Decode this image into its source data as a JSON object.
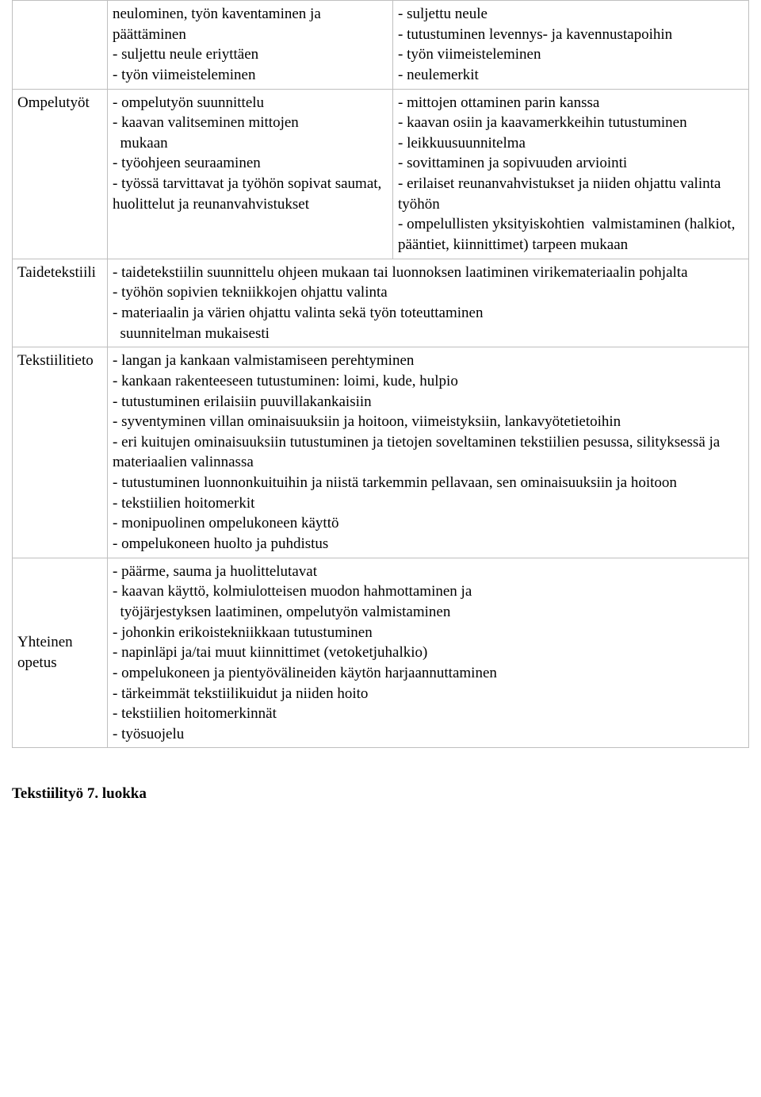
{
  "rows": {
    "r0": {
      "label": "",
      "col2": "neulominen, työn kaventaminen ja päättäminen\n- suljettu neule eriyttäen\n- työn viimeisteleminen",
      "col3": "- suljettu neule\n- tutustuminen levennys- ja kavennustapoihin\n- työn viimeisteleminen\n- neulemerkit"
    },
    "r1": {
      "label": "Ompelutyöt",
      "col2": "- ompelutyön suunnittelu\n- kaavan valitseminen mittojen\n  mukaan\n- työohjeen seuraaminen\n- työssä tarvittavat ja työhön sopivat saumat, huolittelut ja reunanvahvistukset",
      "col3": "- mittojen ottaminen parin kanssa\n- kaavan osiin ja kaavamerkkeihin tutustuminen\n- leikkuusuunnitelma\n- sovittaminen ja sopivuuden arviointi\n- erilaiset reunanvahvistukset ja niiden ohjattu valinta työhön\n- ompelullisten yksityiskohtien  valmistaminen (halkiot, pääntiet, kiinnittimet) tarpeen mukaan"
    },
    "r2": {
      "label": "Taidetekstiili",
      "merged": "- taidetekstiilin suunnittelu ohjeen mukaan tai luonnoksen laatiminen virikemateriaalin pohjalta\n- työhön sopivien tekniikkojen ohjattu valinta\n- materiaalin ja värien ohjattu valinta sekä työn toteuttaminen\n  suunnitelman mukaisesti"
    },
    "r3": {
      "label": "Tekstiilitieto",
      "merged": "- langan ja kankaan valmistamiseen perehtyminen\n- kankaan rakenteeseen tutustuminen: loimi, kude, hulpio\n- tutustuminen erilaisiin puuvillakankaisiin\n- syventyminen villan ominaisuuksiin ja hoitoon, viimeistyksiin, lankavyötetietoihin\n- eri kuitujen ominaisuuksiin tutustuminen ja tietojen soveltaminen tekstiilien pesussa, silityksessä ja materiaalien valinnassa\n- tutustuminen luonnonkuituihin ja niistä tarkemmin pellavaan, sen ominaisuuksiin ja hoitoon\n- tekstiilien hoitomerkit\n- monipuolinen ompelukoneen käyttö\n- ompelukoneen huolto ja puhdistus"
    },
    "r4": {
      "label": "Yhteinen opetus",
      "merged": "- päärme, sauma ja huolittelutavat\n- kaavan käyttö, kolmiulotteisen muodon hahmottaminen ja\n  työjärjestyksen laatiminen, ompelutyön valmistaminen\n- johonkin erikoistekniikkaan tutustuminen\n- napinläpi ja/tai muut kiinnittimet (vetoketjuhalkio)\n- ompelukoneen ja pientyövälineiden käytön harjaannuttaminen\n- tärkeimmät tekstiilikuidut ja niiden hoito\n- tekstiilien hoitomerkinnät\n- työsuojelu"
    }
  },
  "heading": "Tekstiilityö 7. luokka"
}
